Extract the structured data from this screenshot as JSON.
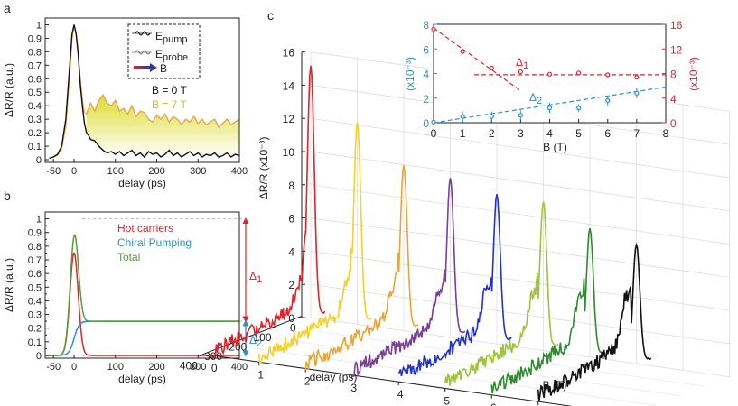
{
  "panels": {
    "a": {
      "label": "a"
    },
    "b": {
      "label": "b"
    },
    "c": {
      "label": "c"
    }
  },
  "chart_data": [
    {
      "id": "a",
      "type": "line",
      "xlabel": "delay (ps)",
      "ylabel": "ΔR/R (a.u.)",
      "xlim": [
        -70,
        400
      ],
      "ylim": [
        -0.02,
        1.05
      ],
      "xticks": [
        "-50",
        "0",
        "100",
        "200",
        "300",
        "400"
      ],
      "yticks": [
        "0",
        "0.1",
        "0.2",
        "0.3",
        "0.4",
        "0.5",
        "0.6",
        "0.7",
        "0.8",
        "0.9",
        "1"
      ],
      "legend": {
        "pump": "pump",
        "probe": "probe",
        "e_symbol": "E",
        "b_arrow": "B",
        "b0": "B = 0 T",
        "b7": "B = 7 T"
      },
      "series": [
        {
          "name": "B = 0 T",
          "color": "#111111",
          "x": [
            -60,
            -50,
            -40,
            -30,
            -20,
            -10,
            -5,
            0,
            5,
            10,
            15,
            20,
            25,
            30,
            35,
            40,
            50,
            60,
            70,
            80,
            90,
            100,
            110,
            120,
            130,
            140,
            150,
            160,
            170,
            180,
            190,
            200,
            210,
            220,
            230,
            240,
            250,
            260,
            270,
            280,
            290,
            300,
            310,
            320,
            330,
            340,
            350,
            360,
            370,
            380,
            390,
            400
          ],
          "y": [
            0.01,
            0.02,
            0.04,
            0.1,
            0.3,
            0.72,
            0.93,
            1.0,
            0.93,
            0.78,
            0.56,
            0.4,
            0.27,
            0.2,
            0.18,
            0.15,
            0.14,
            0.1,
            0.07,
            0.05,
            0.06,
            0.04,
            0.06,
            0.03,
            0.05,
            0.07,
            0.03,
            0.05,
            0.02,
            0.06,
            0.04,
            0.05,
            0.02,
            0.04,
            0.07,
            0.03,
            0.05,
            0.02,
            0.04,
            0.06,
            0.03,
            0.05,
            0.02,
            0.04,
            0.03,
            0.05,
            0.02,
            0.03,
            0.05,
            0.02,
            0.04,
            0.03
          ]
        },
        {
          "name": "B = 7 T",
          "color": "#e8b84a",
          "x": [
            -60,
            -50,
            -40,
            -30,
            -20,
            -10,
            -5,
            0,
            5,
            10,
            15,
            20,
            25,
            30,
            35,
            40,
            50,
            60,
            70,
            80,
            90,
            100,
            110,
            120,
            130,
            140,
            150,
            160,
            170,
            180,
            190,
            200,
            210,
            220,
            230,
            240,
            250,
            260,
            270,
            280,
            290,
            300,
            310,
            320,
            330,
            340,
            350,
            360,
            370,
            380,
            390,
            400
          ],
          "y": [
            0.01,
            0.02,
            0.03,
            0.08,
            0.25,
            0.65,
            0.9,
            1.0,
            0.94,
            0.8,
            0.6,
            0.45,
            0.35,
            0.34,
            0.38,
            0.42,
            0.36,
            0.44,
            0.48,
            0.42,
            0.4,
            0.44,
            0.36,
            0.38,
            0.34,
            0.4,
            0.32,
            0.36,
            0.35,
            0.3,
            0.28,
            0.33,
            0.3,
            0.34,
            0.28,
            0.32,
            0.3,
            0.26,
            0.3,
            0.28,
            0.32,
            0.27,
            0.3,
            0.26,
            0.28,
            0.3,
            0.24,
            0.27,
            0.3,
            0.26,
            0.28,
            0.3
          ]
        }
      ]
    },
    {
      "id": "b",
      "type": "line",
      "xlabel": "delay (ps)",
      "ylabel": "ΔR/R (a.u.)",
      "xlim": [
        -70,
        400
      ],
      "ylim": [
        -0.02,
        1.05
      ],
      "xticks": [
        "-50",
        "0",
        "100",
        "200",
        "300",
        "400"
      ],
      "yticks": [
        "0",
        "0.05",
        "0.1",
        "0.15",
        "0.2",
        "0.25",
        "0.3",
        "0.35",
        "0.4",
        "0.45",
        "0.5",
        "0.55",
        "0.6",
        "0.65",
        "0.7",
        "0.75",
        "0.8",
        "0.85",
        "0.9",
        "0.95",
        "1"
      ],
      "ytick_labels": [
        "0",
        "0.1",
        "0.2",
        "0.3",
        "0.4",
        "0.5",
        "0.6",
        "0.7",
        "0.8",
        "0.9",
        "1"
      ],
      "legend": [
        {
          "name": "Hot carriers",
          "color": "#e0242c"
        },
        {
          "name": "Chiral Pumping",
          "color": "#2f8fc8"
        },
        {
          "name": "Total",
          "color": "#5a9a3c"
        }
      ],
      "annotations": {
        "delta1": "Δ",
        "delta1_sub": "1",
        "delta2": "Δ",
        "delta2_sub": "2"
      },
      "models": {
        "hot_carriers": {
          "amplitude": 0.75,
          "center_ps": 0,
          "sigma_ps": 10,
          "decay_ps": 8
        },
        "chiral_pumping": {
          "plateau": 0.25,
          "rise_center_ps": 0,
          "rise_width_ps": 6
        },
        "total": "hot_carriers + chiral_pumping"
      }
    },
    {
      "id": "c",
      "type": "line",
      "xlabel": "B (T)",
      "ylabel": "ΔR/R (x10⁻³)",
      "delay_label": "delay (ps)",
      "ylim": [
        0,
        16
      ],
      "z_ticks": [
        "0",
        "2",
        "4",
        "6",
        "8",
        "10",
        "12",
        "14",
        "16"
      ],
      "b_ticks": [
        "0",
        "1",
        "2",
        "3",
        "4",
        "5",
        "6",
        "7"
      ],
      "delay_ticks": [
        "0",
        "100",
        "200",
        "300",
        "400"
      ],
      "series": [
        {
          "B": 0,
          "color": "#e0242c",
          "peak": 15.2
        },
        {
          "B": 1,
          "color": "#f2d230",
          "peak": 12.2
        },
        {
          "B": 2,
          "color": "#e8a63a",
          "peak": 10.0
        },
        {
          "B": 3,
          "color": "#7b3f98",
          "peak": 9.6
        },
        {
          "B": 4,
          "color": "#2233cc",
          "peak": 9.0
        },
        {
          "B": 5,
          "color": "#9ec43c",
          "peak": 9.0
        },
        {
          "B": 6,
          "color": "#2e8b2e",
          "peak": 7.8
        },
        {
          "B": 7,
          "color": "#111111",
          "peak": 7.2
        }
      ],
      "inset": {
        "type": "scatter",
        "xlabel": "B (T)",
        "xticks": [
          "0",
          "1",
          "2",
          "3",
          "4",
          "5",
          "6",
          "7",
          "8"
        ],
        "left_axis": {
          "label": "(x10⁻³)",
          "ticks": [
            "0",
            "2",
            "4",
            "6",
            "8"
          ],
          "color": "#2f8fc8",
          "ylim": [
            0,
            8
          ]
        },
        "right_axis": {
          "label": "(x10⁻³)",
          "ticks": [
            "0",
            "4",
            "8",
            "12",
            "16"
          ],
          "color": "#e0242c",
          "ylim": [
            0,
            16
          ]
        },
        "delta1": {
          "label": "Δ",
          "sub": "1",
          "color": "#e0242c",
          "B": [
            0,
            1,
            2,
            3,
            4,
            5,
            6,
            7
          ],
          "values": [
            15.2,
            11.6,
            8.9,
            8.3,
            7.9,
            8.1,
            7.8,
            7.4
          ],
          "fit_lines": [
            {
              "x": [
                0,
                3
              ],
              "y": [
                15.4,
                5.2
              ]
            },
            {
              "x": [
                1.4,
                8
              ],
              "y": [
                7.8,
                7.8
              ]
            }
          ]
        },
        "delta2": {
          "label": "Δ",
          "sub": "2",
          "color": "#2f8fc8",
          "B": [
            0,
            1,
            2,
            3,
            4,
            5,
            6,
            7
          ],
          "values": [
            0.05,
            0.5,
            0.5,
            0.6,
            1.2,
            1.2,
            1.8,
            2.4
          ],
          "errors": [
            0.2,
            0.4,
            0.4,
            0.4,
            0.4,
            0.3,
            0.4,
            0.4
          ],
          "fit_line": {
            "x": [
              0,
              8
            ],
            "y": [
              0.0,
              2.9
            ]
          }
        }
      }
    }
  ]
}
